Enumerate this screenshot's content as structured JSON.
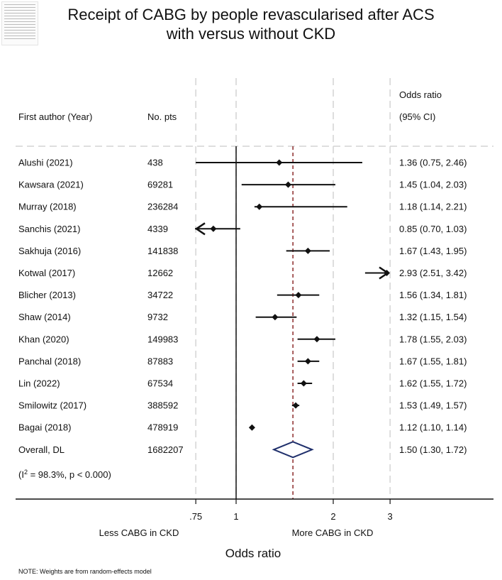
{
  "chart_data": {
    "type": "forest",
    "title_lines": [
      "Receipt of CABG by people revascularised after ACS",
      "with versus without CKD"
    ],
    "columns": {
      "author_header": "First author (Year)",
      "n_header": "No. pts",
      "or_header_line1": "Odds ratio",
      "or_header_line2": "(95% CI)"
    },
    "rows": [
      {
        "author": "Alushi (2021)",
        "n": "438",
        "ci_text": "1.36 (0.75, 2.46)",
        "or": 1.36,
        "lo": 0.75,
        "hi": 2.46
      },
      {
        "author": "Kawsara (2021)",
        "n": "69281",
        "ci_text": "1.45 (1.04, 2.03)",
        "or": 1.45,
        "lo": 1.04,
        "hi": 2.03
      },
      {
        "author": "Murray (2018)",
        "n": "236284",
        "ci_text": "1.18 (1.14, 2.21)",
        "or": 1.18,
        "lo": 1.14,
        "hi": 2.21
      },
      {
        "author": "Sanchis (2021)",
        "n": "4339",
        "ci_text": "0.85 (0.70, 1.03)",
        "or": 0.85,
        "lo": 0.7,
        "hi": 1.03
      },
      {
        "author": "Sakhuja (2016)",
        "n": "141838",
        "ci_text": "1.67 (1.43, 1.95)",
        "or": 1.67,
        "lo": 1.43,
        "hi": 1.95
      },
      {
        "author": "Kotwal (2017)",
        "n": "12662",
        "ci_text": "2.93 (2.51, 3.42)",
        "or": 2.93,
        "lo": 2.51,
        "hi": 3.42
      },
      {
        "author": "Blicher (2013)",
        "n": "34722",
        "ci_text": "1.56 (1.34, 1.81)",
        "or": 1.56,
        "lo": 1.34,
        "hi": 1.81
      },
      {
        "author": "Shaw (2014)",
        "n": "9732",
        "ci_text": "1.32 (1.15, 1.54)",
        "or": 1.32,
        "lo": 1.15,
        "hi": 1.54
      },
      {
        "author": "Khan (2020)",
        "n": "149983",
        "ci_text": "1.78 (1.55, 2.03)",
        "or": 1.78,
        "lo": 1.55,
        "hi": 2.03
      },
      {
        "author": "Panchal (2018)",
        "n": "87883",
        "ci_text": "1.67 (1.55, 1.81)",
        "or": 1.67,
        "lo": 1.55,
        "hi": 1.81
      },
      {
        "author": "Lin (2022)",
        "n": "67534",
        "ci_text": "1.62 (1.55, 1.72)",
        "or": 1.62,
        "lo": 1.55,
        "hi": 1.72
      },
      {
        "author": "Smilowitz (2017)",
        "n": "388592",
        "ci_text": "1.53 (1.49, 1.57)",
        "or": 1.53,
        "lo": 1.49,
        "hi": 1.57
      },
      {
        "author": "Bagai (2018)",
        "n": "478919",
        "ci_text": "1.12 (1.10, 1.14)",
        "or": 1.12,
        "lo": 1.1,
        "hi": 1.14
      }
    ],
    "overall": {
      "author": "Overall, DL",
      "n": "1682207",
      "ci_text": "1.50 (1.30, 1.72)",
      "or": 1.5,
      "lo": 1.3,
      "hi": 1.72
    },
    "heterogeneity_prefix": "(I",
    "heterogeneity_sup": "2",
    "heterogeneity_rest": " = 98.3%, p < 0.000)",
    "x_scale": "log",
    "xlim": [
      0.75,
      3
    ],
    "x_ticks": [
      0.75,
      1,
      2,
      3
    ],
    "x_tick_labels": [
      ".75",
      "1",
      "2",
      "3"
    ],
    "null_line": 1,
    "xlabel": "Odds ratio",
    "left_direction_label": "Less CABG in CKD",
    "right_direction_label": "More CABG in CKD",
    "note": "NOTE: Weights are from random-effects model",
    "colors": {
      "overall_diamond": "#1f2f6b",
      "pooled_line": "#8b2a2a",
      "guide_lines": "#d4d4d4",
      "ink": "#111111"
    }
  }
}
